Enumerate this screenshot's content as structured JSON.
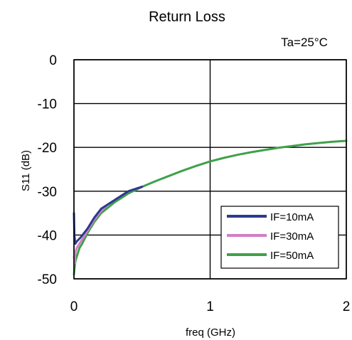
{
  "chart_data": {
    "type": "line",
    "title": "Return Loss",
    "annotation": "Ta=25°C",
    "xlabel": "freq (GHz)",
    "ylabel": "S11 (dB)",
    "xlim": [
      0,
      2
    ],
    "ylim": [
      -50,
      0
    ],
    "x_ticks": [
      "0",
      "1",
      "2"
    ],
    "y_ticks": [
      "0",
      "-10",
      "-20",
      "-30",
      "-40",
      "-50"
    ],
    "x_tick_values": [
      0,
      1,
      2
    ],
    "y_tick_values": [
      0,
      -10,
      -20,
      -30,
      -40,
      -50
    ],
    "grid": true,
    "legend_position": "bottom-right",
    "series": [
      {
        "name": "IF=10mA",
        "color": "#2b3a8f",
        "x": [
          0.0,
          0.003,
          0.01,
          0.02,
          0.05,
          0.1,
          0.15,
          0.2,
          0.25,
          0.3,
          0.4,
          0.5
        ],
        "y": [
          -35,
          -40,
          -42,
          -41.5,
          -40.5,
          -38.5,
          -36,
          -34,
          -33,
          -32,
          -30,
          -29
        ]
      },
      {
        "name": "IF=30mA",
        "color": "#d27fc5",
        "x": [
          0.0,
          0.005,
          0.01,
          0.02,
          0.05,
          0.1,
          0.15,
          0.2,
          0.25,
          0.3,
          0.4,
          0.5
        ],
        "y": [
          -45,
          -46.5,
          -44,
          -43,
          -41.5,
          -39,
          -36.5,
          -34.5,
          -33,
          -32,
          -30,
          -29
        ]
      },
      {
        "name": "IF=50mA",
        "color": "#3fa14a",
        "x": [
          0.0,
          0.003,
          0.01,
          0.02,
          0.04,
          0.06,
          0.1,
          0.15,
          0.2,
          0.3,
          0.4,
          0.5,
          0.6,
          0.7,
          0.8,
          0.9,
          1.0,
          1.1,
          1.2,
          1.3,
          1.4,
          1.5,
          1.6,
          1.7,
          1.8,
          1.9,
          2.0
        ],
        "y": [
          -49,
          -48,
          -46,
          -45,
          -43,
          -42,
          -39.5,
          -37,
          -35,
          -32.5,
          -30.5,
          -29,
          -27.7,
          -26.5,
          -25.3,
          -24.2,
          -23.2,
          -22.4,
          -21.7,
          -21.1,
          -20.6,
          -20.1,
          -19.7,
          -19.3,
          -19.0,
          -18.7,
          -18.5
        ]
      }
    ]
  }
}
